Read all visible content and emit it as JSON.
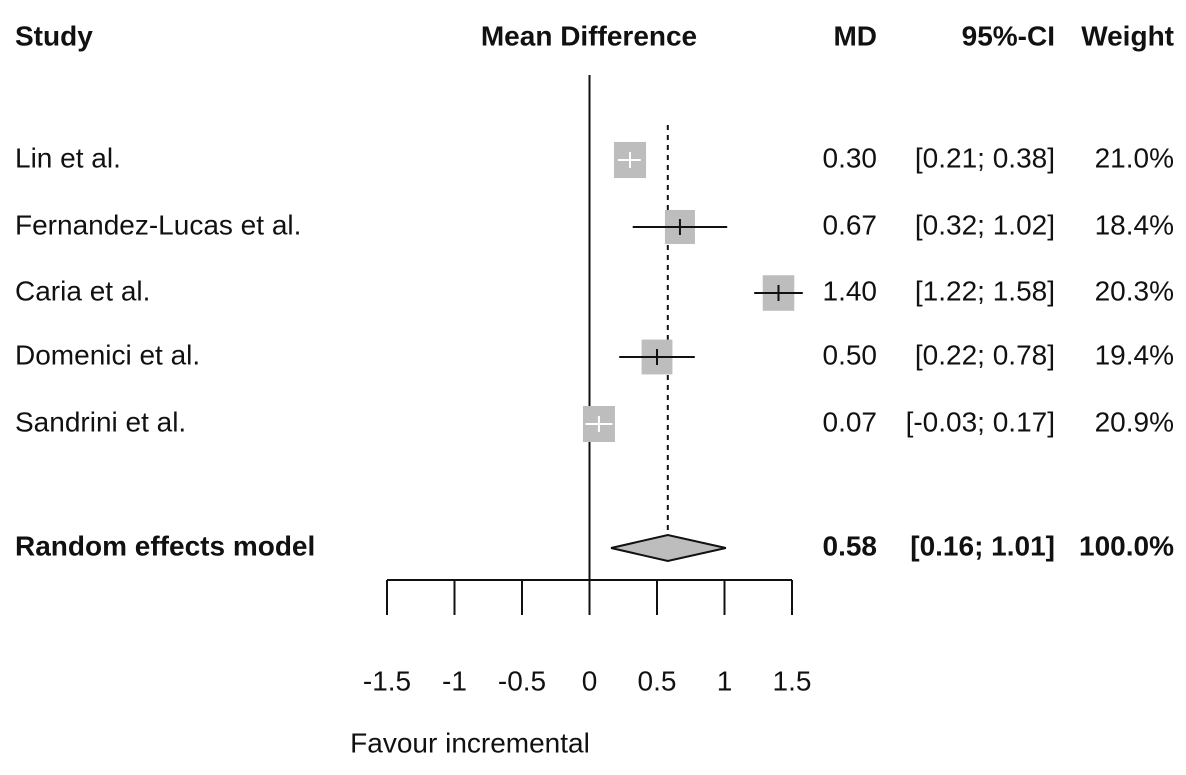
{
  "chart_data": {
    "type": "forest",
    "headers": {
      "study": "Study",
      "plot": "Mean Difference",
      "md": "MD",
      "ci": "95%-CI",
      "weight": "Weight"
    },
    "categories": [
      "Lin et al.",
      "Fernandez-Lucas et al.",
      "Caria et al.",
      "Domenici et al.",
      "Sandrini et al."
    ],
    "values": [
      0.3,
      0.67,
      1.4,
      0.5,
      0.07
    ],
    "value_labels": [
      "0.30",
      "0.67",
      "1.40",
      "0.50",
      "0.07"
    ],
    "ci_low": [
      0.21,
      0.32,
      1.22,
      0.22,
      -0.03
    ],
    "ci_high": [
      0.38,
      1.02,
      1.58,
      0.78,
      0.17
    ],
    "ci_labels": [
      "[0.21; 0.38]",
      "[0.32; 1.02]",
      "[1.22; 1.58]",
      "[0.22; 0.78]",
      "[-0.03; 0.17]"
    ],
    "weights": [
      21.0,
      18.4,
      20.3,
      19.4,
      20.9
    ],
    "weight_labels": [
      "21.0%",
      "18.4%",
      "20.3%",
      "19.4%",
      "20.9%"
    ],
    "summary": {
      "name": "Random effects model",
      "value": 0.58,
      "value_label": "0.58",
      "ci_low": 0.16,
      "ci_high": 1.01,
      "ci_label": "[0.16; 1.01]",
      "weight": 100,
      "weight_label": "100.0%"
    },
    "xlim": [
      -1.5,
      1.5
    ],
    "xticks": [
      -1.5,
      -1,
      -0.5,
      0,
      0.5,
      1,
      1.5
    ],
    "xlabel": "Favour incremental",
    "color": "#bdbdbd"
  }
}
